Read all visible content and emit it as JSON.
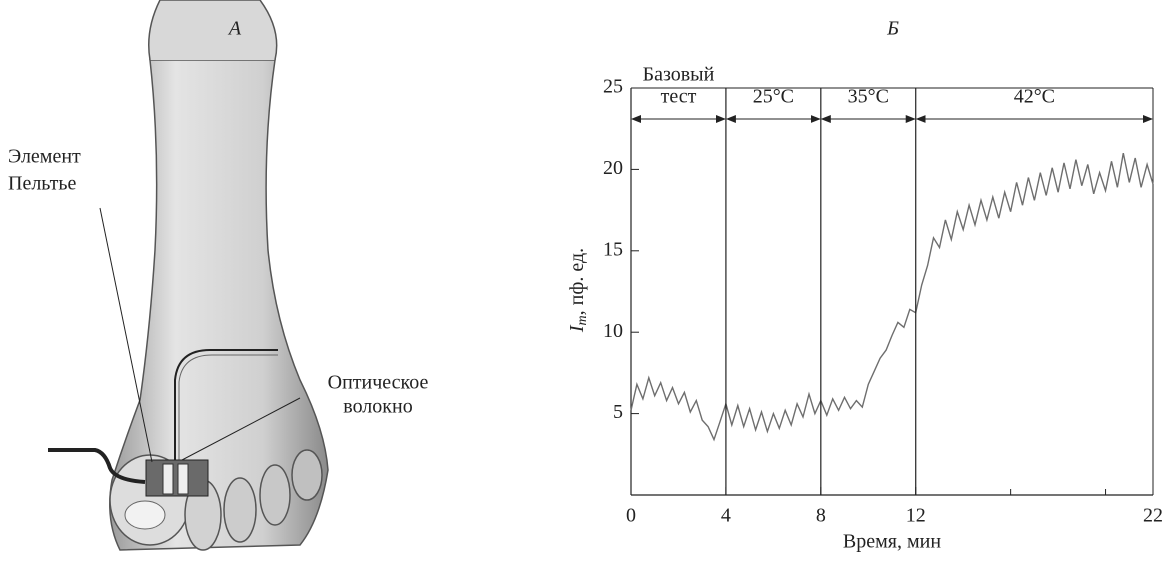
{
  "panel_a": {
    "label": "А",
    "peltier_label": [
      "Элемент",
      "Пельтье"
    ],
    "fiber_label": [
      "Оптическое",
      "волокно"
    ]
  },
  "chart_data": {
    "type": "line",
    "label": "Б",
    "ylabel": {
      "symbol": "I",
      "subscript": "m",
      "rest": ", пф. ед."
    },
    "xlabel": "Время, мин",
    "xlim": [
      0,
      22
    ],
    "xticks": [
      0,
      4,
      8,
      12,
      22
    ],
    "xminor_ticks": [
      16,
      20
    ],
    "ylim": [
      0,
      25
    ],
    "yticks": [
      5,
      10,
      15,
      20,
      25
    ],
    "color": "#6e6e6e",
    "phases": [
      {
        "start": 0,
        "end": 4,
        "label": [
          "Базовый",
          "тест"
        ]
      },
      {
        "start": 4,
        "end": 8,
        "label": [
          "25°C"
        ]
      },
      {
        "start": 8,
        "end": 12,
        "label": [
          "35°C"
        ]
      },
      {
        "start": 12,
        "end": 22,
        "label": [
          "42°C"
        ]
      }
    ],
    "x": [
      0,
      0.25,
      0.5,
      0.75,
      1,
      1.25,
      1.5,
      1.75,
      2,
      2.25,
      2.5,
      2.75,
      3,
      3.25,
      3.5,
      3.75,
      4,
      4.25,
      4.5,
      4.75,
      5,
      5.25,
      5.5,
      5.75,
      6,
      6.25,
      6.5,
      6.75,
      7,
      7.25,
      7.5,
      7.75,
      8,
      8.25,
      8.5,
      8.75,
      9,
      9.25,
      9.5,
      9.75,
      10,
      10.25,
      10.5,
      10.75,
      11,
      11.25,
      11.5,
      11.75,
      12,
      12.25,
      12.5,
      12.75,
      13,
      13.25,
      13.5,
      13.75,
      14,
      14.25,
      14.5,
      14.75,
      15,
      15.25,
      15.5,
      15.75,
      16,
      16.25,
      16.5,
      16.75,
      17,
      17.25,
      17.5,
      17.75,
      18,
      18.25,
      18.5,
      18.75,
      19,
      19.25,
      19.5,
      19.75,
      20,
      20.25,
      20.5,
      20.75,
      21,
      21.25,
      21.5,
      21.75,
      22
    ],
    "values": [
      5.2,
      6.8,
      5.9,
      7.2,
      6.1,
      6.9,
      5.8,
      6.6,
      5.6,
      6.3,
      5.1,
      5.8,
      4.6,
      4.2,
      3.4,
      4.5,
      5.6,
      4.3,
      5.5,
      4.2,
      5.3,
      4.0,
      5.1,
      3.9,
      5.0,
      4.1,
      5.2,
      4.3,
      5.6,
      4.8,
      6.2,
      5.0,
      5.8,
      4.9,
      5.9,
      5.2,
      6.0,
      5.3,
      5.8,
      5.4,
      6.8,
      7.6,
      8.4,
      8.9,
      9.8,
      10.6,
      10.3,
      11.4,
      11.2,
      12.9,
      14.1,
      15.8,
      15.2,
      16.9,
      15.7,
      17.4,
      16.3,
      17.8,
      16.6,
      18.1,
      16.9,
      18.3,
      17.0,
      18.6,
      17.4,
      19.2,
      17.8,
      19.5,
      18.1,
      19.8,
      18.4,
      20.1,
      18.6,
      20.4,
      18.8,
      20.6,
      19.0,
      20.3,
      18.5,
      19.8,
      18.7,
      20.5,
      18.9,
      21.0,
      19.2,
      20.7,
      18.9,
      20.3,
      19.1
    ]
  }
}
